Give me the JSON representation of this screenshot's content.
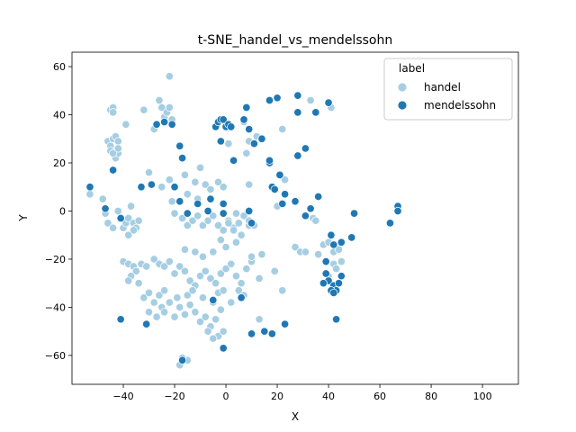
{
  "chart_data": {
    "type": "scatter",
    "title": "t-SNE_handel_vs_mendelssohn",
    "xlabel": "X",
    "ylabel": "Y",
    "xlim": [
      -60,
      114
    ],
    "ylim": [
      -72,
      66
    ],
    "xticks": [
      -40,
      -20,
      0,
      20,
      40,
      60,
      80,
      100
    ],
    "yticks": [
      -60,
      -40,
      -20,
      0,
      20,
      40,
      60
    ],
    "xtick_labels": [
      "−40",
      "−20",
      "0",
      "20",
      "40",
      "60",
      "80",
      "100"
    ],
    "ytick_labels": [
      "−60",
      "−40",
      "−20",
      "0",
      "20",
      "40",
      "60"
    ],
    "grid": false,
    "legend": {
      "title": "label",
      "position": "top-right",
      "entries": [
        "handel",
        "mendelssohn"
      ]
    },
    "series": [
      {
        "name": "handel",
        "color": "#a6cee3",
        "points": [
          [
            -53,
            7
          ],
          [
            -48,
            5
          ],
          [
            -47,
            -1
          ],
          [
            -46,
            -5
          ],
          [
            -44,
            -7
          ],
          [
            -42,
            0
          ],
          [
            -41,
            -3
          ],
          [
            -40,
            -7
          ],
          [
            -39,
            -5
          ],
          [
            -38,
            -3
          ],
          [
            -37,
            2
          ],
          [
            -36,
            -5
          ],
          [
            -35,
            -7
          ],
          [
            -34,
            -4
          ],
          [
            -36,
            -8
          ],
          [
            -38,
            -10
          ],
          [
            -45,
            42
          ],
          [
            -44,
            43
          ],
          [
            -44,
            41
          ],
          [
            -39,
            36
          ],
          [
            -32,
            42
          ],
          [
            -26,
            46
          ],
          [
            -25,
            43
          ],
          [
            -24,
            39
          ],
          [
            -23,
            41
          ],
          [
            -22,
            43
          ],
          [
            -24,
            37
          ],
          [
            -21,
            38
          ],
          [
            -28,
            34
          ],
          [
            -22,
            56
          ],
          [
            -46,
            29
          ],
          [
            -45,
            27
          ],
          [
            -44,
            30
          ],
          [
            -43,
            31
          ],
          [
            -42,
            29
          ],
          [
            -45,
            25
          ],
          [
            -43,
            22
          ],
          [
            -42,
            24
          ],
          [
            -44,
            24
          ],
          [
            -42,
            26
          ],
          [
            -30,
            16
          ],
          [
            -25,
            10
          ],
          [
            -22,
            13
          ],
          [
            -16,
            15
          ],
          [
            -12,
            12
          ],
          [
            -10,
            18
          ],
          [
            -8,
            11
          ],
          [
            -6,
            9
          ],
          [
            -3,
            12
          ],
          [
            -1,
            10
          ],
          [
            -15,
            7
          ],
          [
            -11,
            5
          ],
          [
            -21,
            4
          ],
          [
            -20,
            -1
          ],
          [
            -17,
            -3
          ],
          [
            -15,
            -6
          ],
          [
            -13,
            -4
          ],
          [
            -11,
            -2
          ],
          [
            -9,
            -6
          ],
          [
            -7,
            -4
          ],
          [
            -5,
            -2
          ],
          [
            -3,
            -6
          ],
          [
            -1,
            -8
          ],
          [
            1,
            -4
          ],
          [
            3,
            -7
          ],
          [
            5,
            -5
          ],
          [
            7,
            -2
          ],
          [
            9,
            -6
          ],
          [
            4,
            -1
          ],
          [
            -40,
            -21
          ],
          [
            -38,
            -22
          ],
          [
            -36,
            -23
          ],
          [
            -35,
            -25
          ],
          [
            -33,
            -22
          ],
          [
            -31,
            -23
          ],
          [
            -37,
            -27
          ],
          [
            -34,
            -30
          ],
          [
            -38,
            -29
          ],
          [
            -28,
            -20
          ],
          [
            -26,
            -22
          ],
          [
            -24,
            -23
          ],
          [
            -22,
            -21
          ],
          [
            -20,
            -26
          ],
          [
            -18,
            -23
          ],
          [
            -16,
            -25
          ],
          [
            -14,
            -29
          ],
          [
            -12,
            -31
          ],
          [
            -10,
            -27
          ],
          [
            -8,
            -25
          ],
          [
            -6,
            -28
          ],
          [
            -4,
            -30
          ],
          [
            -2,
            -26
          ],
          [
            0,
            -24
          ],
          [
            2,
            -22
          ],
          [
            4,
            -27
          ],
          [
            6,
            -30
          ],
          [
            8,
            -24
          ],
          [
            10,
            -21
          ],
          [
            13,
            -28
          ],
          [
            14,
            -18
          ],
          [
            5,
            -33
          ],
          [
            7,
            -35
          ],
          [
            -3,
            -34
          ],
          [
            -1,
            -33
          ],
          [
            -9,
            -19
          ],
          [
            -5,
            -17
          ],
          [
            -12,
            -17
          ],
          [
            -16,
            -16
          ],
          [
            -32,
            -36
          ],
          [
            -30,
            -34
          ],
          [
            -28,
            -38
          ],
          [
            -26,
            -35
          ],
          [
            -25,
            -40
          ],
          [
            -24,
            -42
          ],
          [
            -22,
            -38
          ],
          [
            -20,
            -44
          ],
          [
            -18,
            -40
          ],
          [
            -16,
            -43
          ],
          [
            -14,
            -39
          ],
          [
            -12,
            -42
          ],
          [
            -10,
            -46
          ],
          [
            -8,
            -44
          ],
          [
            -6,
            -48
          ],
          [
            -4,
            -45
          ],
          [
            -2,
            -41
          ],
          [
            -27,
            -44
          ],
          [
            -24,
            -33
          ],
          [
            -19,
            -36
          ],
          [
            -15,
            -35
          ],
          [
            -13,
            -33
          ],
          [
            -30,
            -42
          ],
          [
            -9,
            -36
          ],
          [
            -5,
            -38
          ],
          [
            -7,
            -50
          ],
          [
            -3,
            -52
          ],
          [
            -5,
            -53
          ],
          [
            -1,
            -50
          ],
          [
            -18,
            -64
          ],
          [
            -15,
            -62
          ],
          [
            -17,
            -61
          ],
          [
            13,
            -45
          ],
          [
            2,
            -38
          ],
          [
            1,
            -5
          ],
          [
            3,
            -8
          ],
          [
            6,
            -10
          ],
          [
            9,
            -4
          ],
          [
            11,
            -6
          ],
          [
            -2,
            -12
          ],
          [
            0,
            -15
          ],
          [
            4,
            -13
          ],
          [
            10,
            -19
          ],
          [
            27,
            -15
          ],
          [
            29,
            -17
          ],
          [
            31,
            -17
          ],
          [
            36,
            -18
          ],
          [
            38,
            -14
          ],
          [
            40,
            -13
          ],
          [
            42,
            -17
          ],
          [
            44,
            -16
          ],
          [
            42,
            -22
          ],
          [
            40,
            -27
          ],
          [
            45,
            -21
          ],
          [
            43,
            -24
          ],
          [
            22,
            34
          ],
          [
            33,
            46
          ],
          [
            41,
            43
          ],
          [
            34,
            -3
          ],
          [
            35,
            -4
          ],
          [
            9,
            29
          ],
          [
            12,
            31
          ],
          [
            7,
            37
          ],
          [
            8,
            24
          ],
          [
            1,
            28
          ],
          [
            20,
            2
          ],
          [
            19,
            -25
          ],
          [
            22,
            -33
          ],
          [
            9,
            11
          ],
          [
            23,
            13
          ]
        ]
      },
      {
        "name": "mendelssohn",
        "color": "#1f78b4",
        "points": [
          [
            -53,
            10
          ],
          [
            -47,
            1
          ],
          [
            -44,
            17
          ],
          [
            -41,
            -3
          ],
          [
            -41,
            -45
          ],
          [
            -33,
            10
          ],
          [
            -31,
            -47
          ],
          [
            -29,
            11
          ],
          [
            -27,
            36
          ],
          [
            -24,
            37
          ],
          [
            -21,
            36
          ],
          [
            -20,
            10
          ],
          [
            -18,
            27
          ],
          [
            -17,
            22
          ],
          [
            -15,
            -1
          ],
          [
            -18,
            4
          ],
          [
            -11,
            3
          ],
          [
            -17,
            -62
          ],
          [
            -6,
            5
          ],
          [
            -7,
            0
          ],
          [
            -4,
            35
          ],
          [
            -3,
            37
          ],
          [
            -2,
            38
          ],
          [
            -1,
            38
          ],
          [
            0,
            35
          ],
          [
            1,
            36
          ],
          [
            2,
            35
          ],
          [
            -2,
            29
          ],
          [
            3,
            21
          ],
          [
            -1,
            -57
          ],
          [
            -5,
            -37
          ],
          [
            -1,
            -1
          ],
          [
            -1,
            3
          ],
          [
            6,
            -36
          ],
          [
            8,
            43
          ],
          [
            7,
            38
          ],
          [
            9,
            34
          ],
          [
            11,
            28
          ],
          [
            14,
            30
          ],
          [
            17,
            20
          ],
          [
            18,
            -51
          ],
          [
            15,
            -50
          ],
          [
            10,
            -51
          ],
          [
            9,
            0
          ],
          [
            10,
            -5
          ],
          [
            17,
            21
          ],
          [
            18,
            10
          ],
          [
            19,
            9
          ],
          [
            21,
            15
          ],
          [
            22,
            3
          ],
          [
            23,
            -47
          ],
          [
            17,
            46
          ],
          [
            20,
            47
          ],
          [
            28,
            48
          ],
          [
            28,
            41
          ],
          [
            31,
            26
          ],
          [
            35,
            41
          ],
          [
            40,
            45
          ],
          [
            28,
            23
          ],
          [
            23,
            7
          ],
          [
            27,
            4
          ],
          [
            31,
            -2
          ],
          [
            36,
            6
          ],
          [
            33,
            1
          ],
          [
            39,
            -21
          ],
          [
            41,
            -10
          ],
          [
            42,
            -14
          ],
          [
            45,
            -13
          ],
          [
            49,
            -11
          ],
          [
            39,
            -26
          ],
          [
            40,
            -29
          ],
          [
            42,
            -31
          ],
          [
            43,
            -33
          ],
          [
            44,
            -30
          ],
          [
            41,
            -33
          ],
          [
            42,
            -34
          ],
          [
            38,
            -30
          ],
          [
            45,
            -27
          ],
          [
            43,
            -45
          ],
          [
            50,
            -1
          ],
          [
            64,
            -5
          ],
          [
            67,
            2
          ],
          [
            67,
            0
          ]
        ]
      }
    ]
  }
}
